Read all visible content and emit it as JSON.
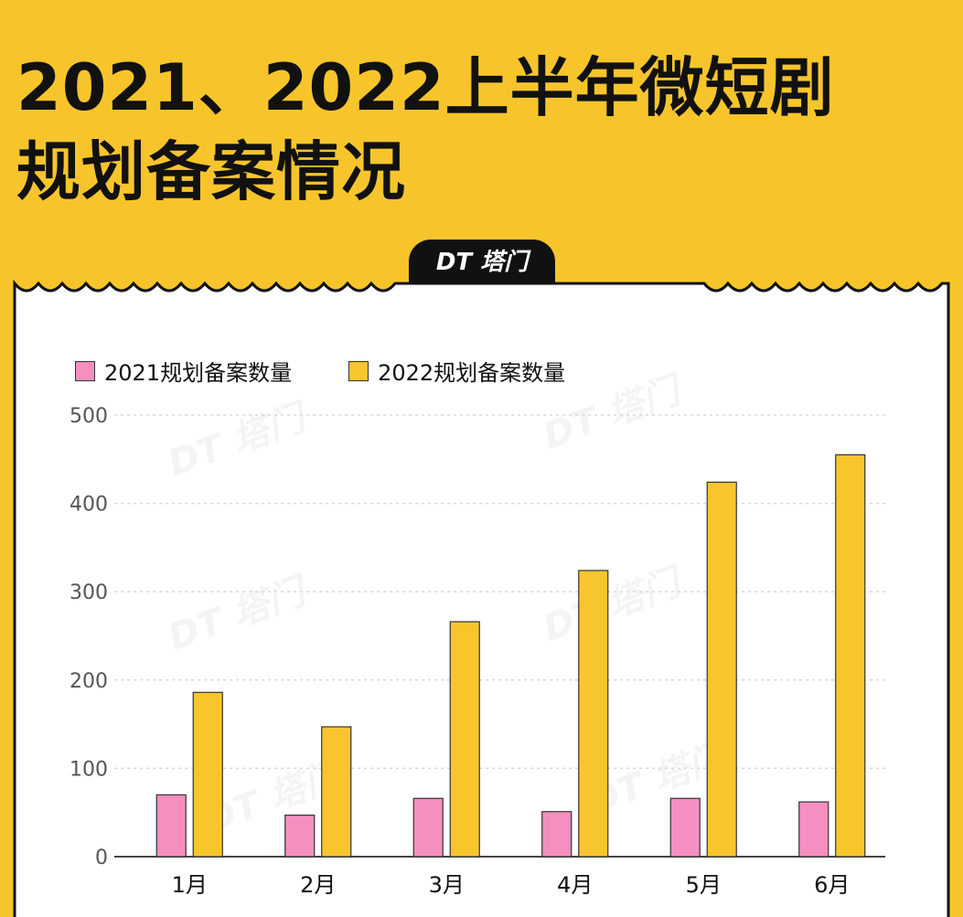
{
  "header": {
    "title_line1": "2021、2022上半年微短剧",
    "title_line2": "规划备案情况"
  },
  "logo": {
    "text": "DT 塔门"
  },
  "colors": {
    "background": "#f7c52b",
    "series_2021": "#f58fc0",
    "series_2022": "#f8c52d"
  },
  "chart_data": {
    "type": "bar",
    "categories": [
      "1月",
      "2月",
      "3月",
      "4月",
      "5月",
      "6月"
    ],
    "series": [
      {
        "name": "2021规划备案数量",
        "values": [
          70,
          47,
          66,
          51,
          66,
          62
        ]
      },
      {
        "name": "2022规划备案数量",
        "values": [
          186,
          147,
          266,
          324,
          424,
          455
        ]
      }
    ],
    "ylim": [
      0,
      500
    ],
    "yticks": [
      0,
      100,
      200,
      300,
      400,
      500
    ],
    "grid": true,
    "legend": "top-left"
  }
}
